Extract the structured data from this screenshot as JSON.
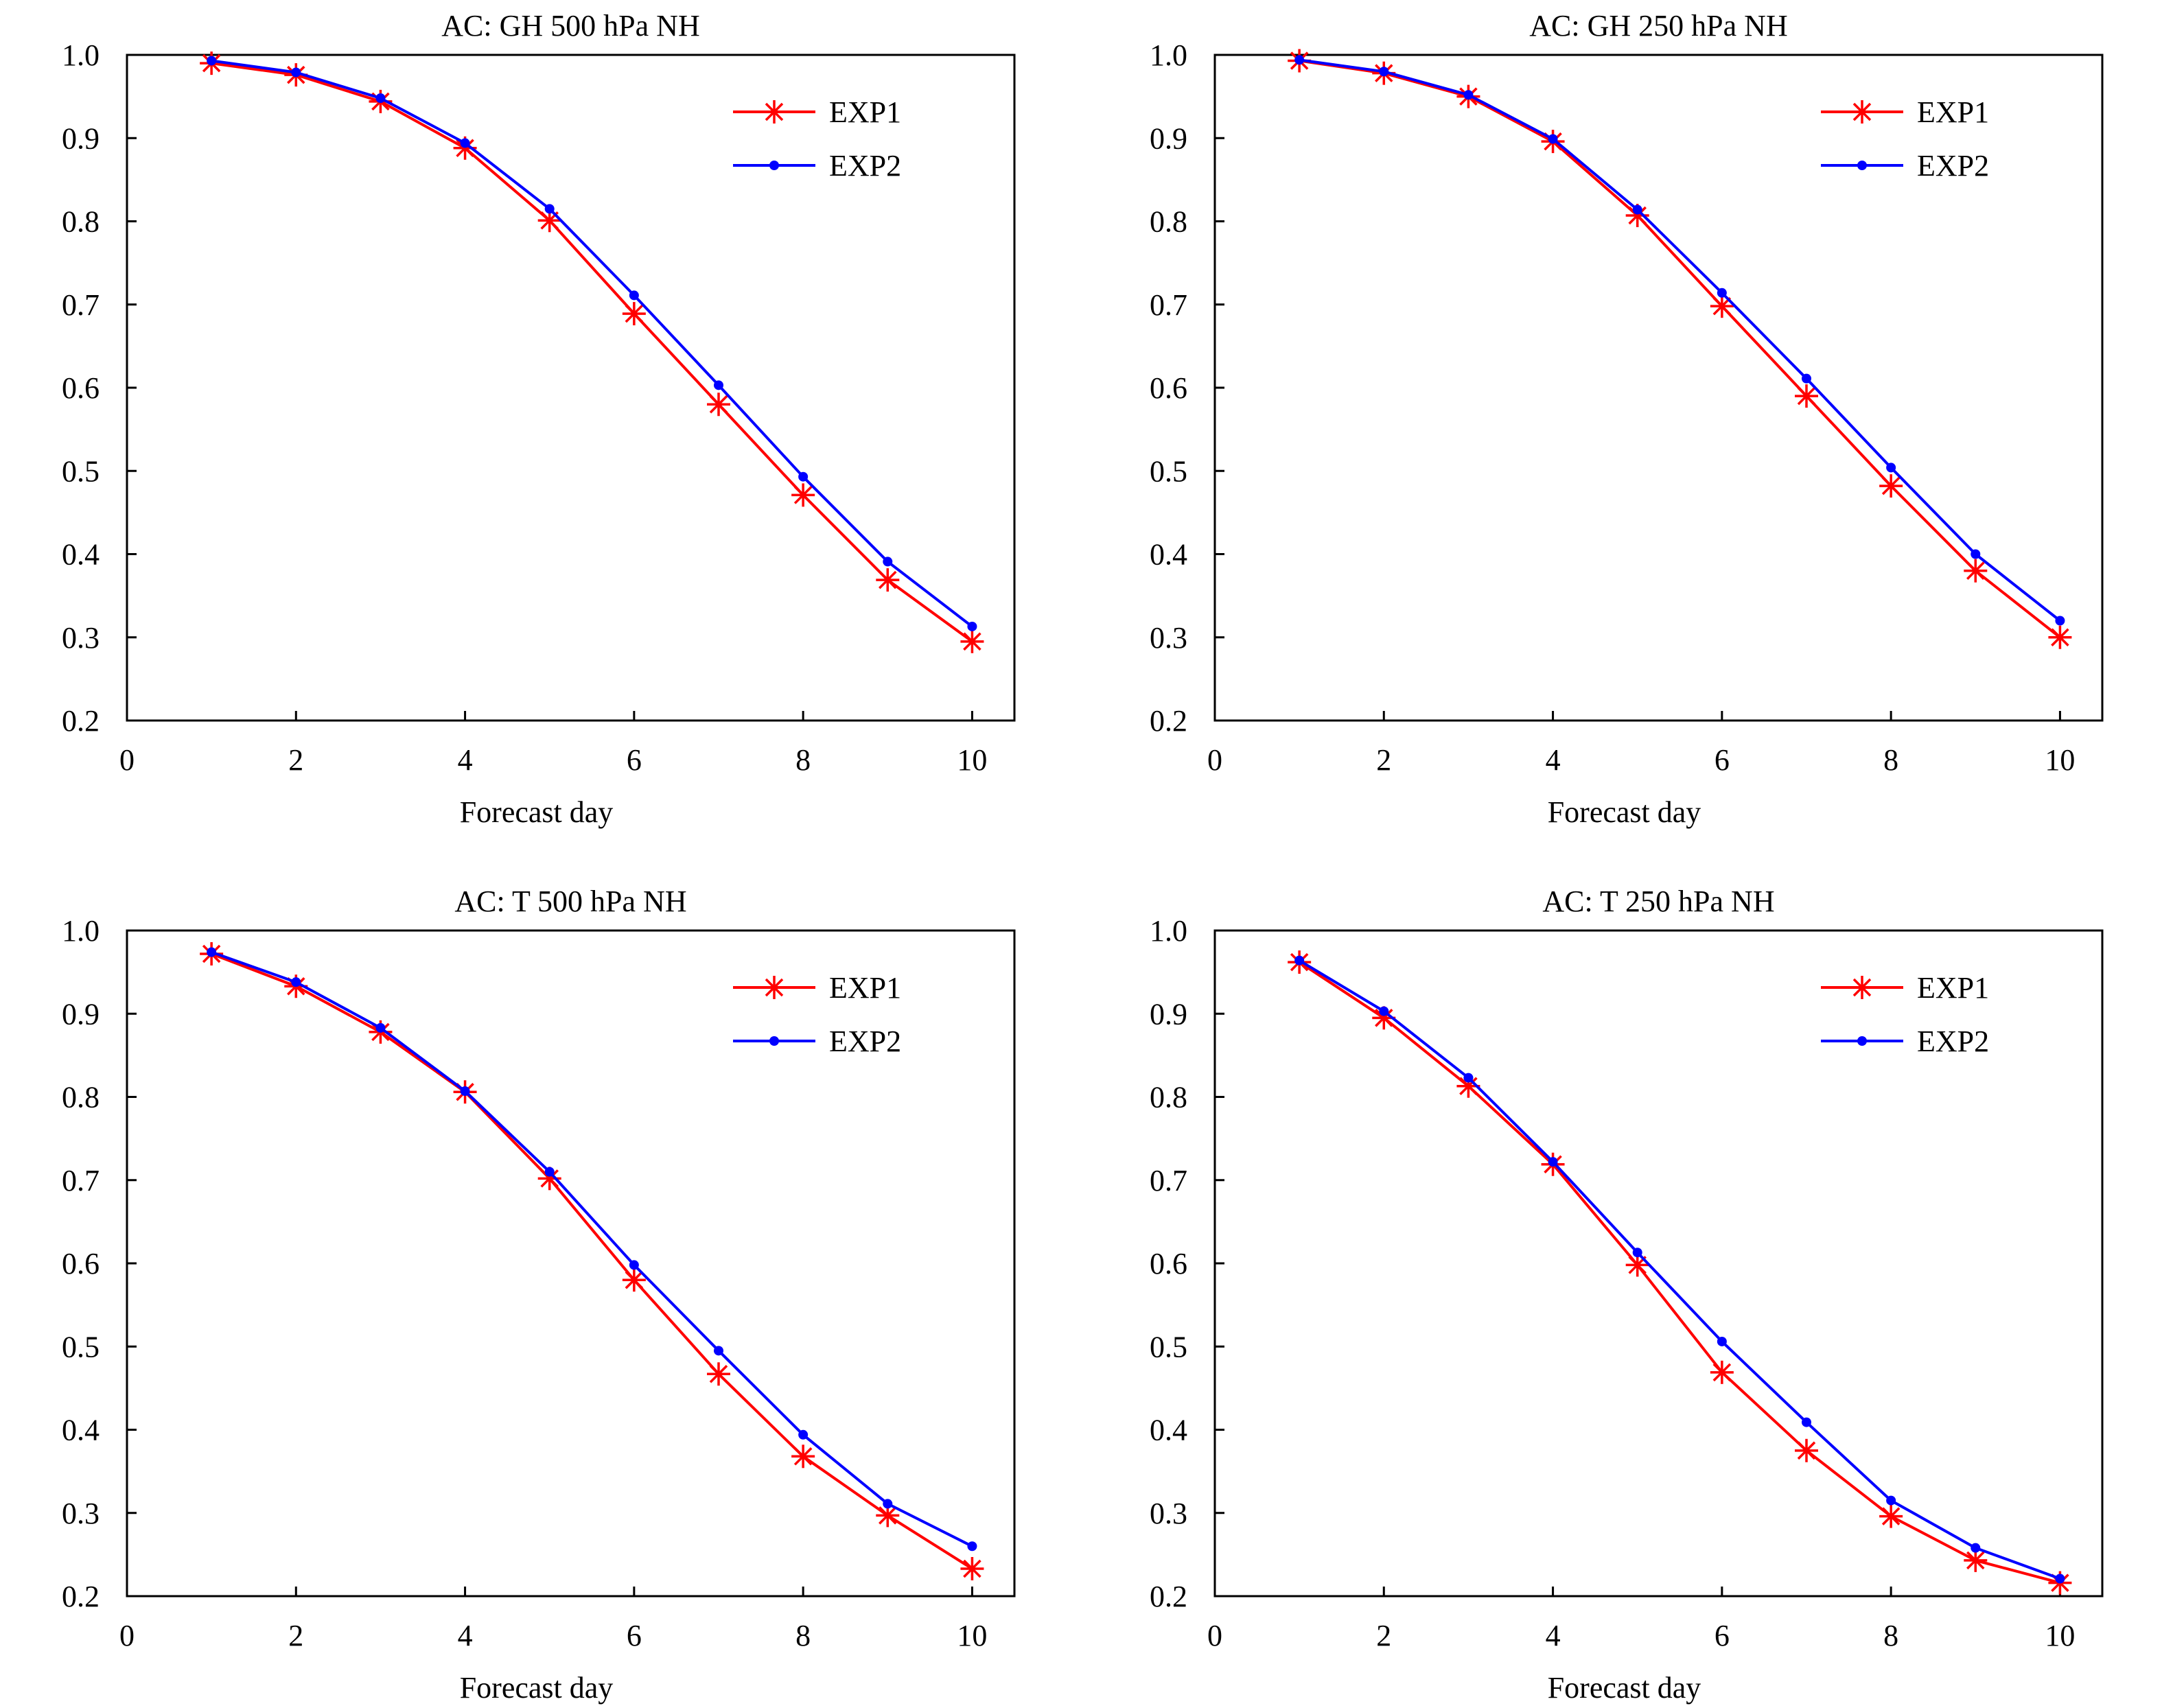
{
  "chart_data": [
    {
      "type": "line",
      "title": "AC: GH 500 hPa NH",
      "xlabel": "Forecast day",
      "ylabel": "",
      "xlim": [
        0,
        10.5
      ],
      "ylim": [
        0.2,
        1.0
      ],
      "xticks": [
        "0",
        "2",
        "4",
        "6",
        "8",
        "10"
      ],
      "yticks": [
        "0.2",
        "0.3",
        "0.4",
        "0.5",
        "0.6",
        "0.7",
        "0.8",
        "0.9",
        "1.0"
      ],
      "grid": false,
      "legend": "top-right",
      "x": [
        1,
        2,
        3,
        4,
        5,
        6,
        7,
        8,
        9,
        10
      ],
      "series": [
        {
          "name": "EXP1",
          "color": "#ff0000",
          "marker": "star",
          "values": [
            0.99,
            0.976,
            0.944,
            0.888,
            0.801,
            0.689,
            0.58,
            0.471,
            0.369,
            0.295
          ]
        },
        {
          "name": "EXP2",
          "color": "#0000ff",
          "marker": "dot",
          "values": [
            0.993,
            0.979,
            0.948,
            0.894,
            0.815,
            0.711,
            0.603,
            0.493,
            0.391,
            0.313
          ]
        }
      ]
    },
    {
      "type": "line",
      "title": "AC: GH 250 hPa NH",
      "xlabel": "Forecast day",
      "ylabel": "",
      "xlim": [
        0,
        10.5
      ],
      "ylim": [
        0.2,
        1.0
      ],
      "xticks": [
        "0",
        "2",
        "4",
        "6",
        "8",
        "10"
      ],
      "yticks": [
        "0.2",
        "0.3",
        "0.4",
        "0.5",
        "0.6",
        "0.7",
        "0.8",
        "0.9",
        "1.0"
      ],
      "grid": false,
      "legend": "top-right",
      "x": [
        1,
        2,
        3,
        4,
        5,
        6,
        7,
        8,
        9,
        10
      ],
      "series": [
        {
          "name": "EXP1",
          "color": "#ff0000",
          "marker": "star",
          "values": [
            0.993,
            0.978,
            0.95,
            0.896,
            0.807,
            0.698,
            0.59,
            0.482,
            0.38,
            0.3
          ]
        },
        {
          "name": "EXP2",
          "color": "#0000ff",
          "marker": "dot",
          "values": [
            0.994,
            0.98,
            0.952,
            0.899,
            0.814,
            0.714,
            0.611,
            0.504,
            0.4,
            0.32
          ]
        }
      ]
    },
    {
      "type": "line",
      "title": "AC: T 500 hPa NH",
      "xlabel": "Forecast day",
      "ylabel": "",
      "xlim": [
        0,
        10.5
      ],
      "ylim": [
        0.2,
        1.0
      ],
      "xticks": [
        "0",
        "2",
        "4",
        "6",
        "8",
        "10"
      ],
      "yticks": [
        "0.2",
        "0.3",
        "0.4",
        "0.5",
        "0.6",
        "0.7",
        "0.8",
        "0.9",
        "1.0"
      ],
      "grid": false,
      "legend": "top-right",
      "x": [
        1,
        2,
        3,
        4,
        5,
        6,
        7,
        8,
        9,
        10
      ],
      "series": [
        {
          "name": "EXP1",
          "color": "#ff0000",
          "marker": "star",
          "values": [
            0.972,
            0.933,
            0.878,
            0.806,
            0.702,
            0.58,
            0.467,
            0.368,
            0.297,
            0.233
          ]
        },
        {
          "name": "EXP2",
          "color": "#0000ff",
          "marker": "dot",
          "values": [
            0.974,
            0.938,
            0.883,
            0.807,
            0.71,
            0.598,
            0.495,
            0.394,
            0.311,
            0.26
          ]
        }
      ]
    },
    {
      "type": "line",
      "title": "AC: T 250 hPa NH",
      "xlabel": "Forecast day",
      "ylabel": "",
      "xlim": [
        0,
        10.5
      ],
      "ylim": [
        0.2,
        1.0
      ],
      "xticks": [
        "0",
        "2",
        "4",
        "6",
        "8",
        "10"
      ],
      "yticks": [
        "0.2",
        "0.3",
        "0.4",
        "0.5",
        "0.6",
        "0.7",
        "0.8",
        "0.9",
        "1.0"
      ],
      "grid": false,
      "legend": "top-right",
      "x": [
        1,
        2,
        3,
        4,
        5,
        6,
        7,
        8,
        9,
        10
      ],
      "series": [
        {
          "name": "EXP1",
          "color": "#ff0000",
          "marker": "star",
          "values": [
            0.962,
            0.895,
            0.813,
            0.719,
            0.598,
            0.469,
            0.375,
            0.296,
            0.243,
            0.216
          ]
        },
        {
          "name": "EXP2",
          "color": "#0000ff",
          "marker": "dot",
          "values": [
            0.964,
            0.903,
            0.823,
            0.722,
            0.613,
            0.506,
            0.409,
            0.315,
            0.258,
            0.221
          ]
        }
      ]
    }
  ]
}
